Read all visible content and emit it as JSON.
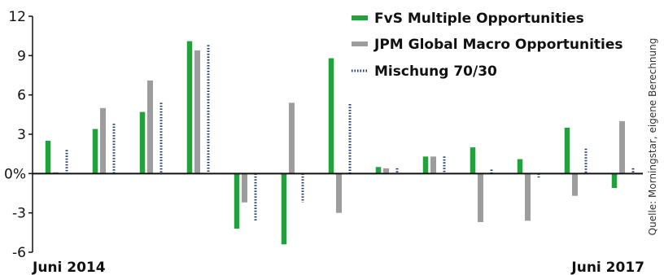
{
  "chart_data": {
    "type": "bar",
    "title": "",
    "xlabel": "",
    "ylabel": "",
    "ylim": [
      -6,
      12
    ],
    "yticks": [
      "12",
      "9",
      "6",
      "3",
      "0%",
      "-3",
      "-6"
    ],
    "x_start_label": "Juni 2014",
    "x_end_label": "Juni 2017",
    "categories": [
      "1",
      "2",
      "3",
      "4",
      "5",
      "6",
      "7",
      "8",
      "9",
      "10",
      "11",
      "12",
      "13"
    ],
    "series": [
      {
        "name": "FvS Multiple Opportunities",
        "color": "#1fa33a",
        "style": "solid",
        "values": [
          2.5,
          3.4,
          4.7,
          10.1,
          -4.2,
          -5.4,
          8.8,
          0.5,
          1.3,
          2.0,
          1.1,
          3.5,
          -1.1
        ]
      },
      {
        "name": "JPM Global Macro Opportunities",
        "color": "#9d9d9d",
        "style": "solid",
        "values": [
          0.1,
          5.0,
          7.1,
          9.4,
          -2.2,
          5.4,
          -3.0,
          0.4,
          1.3,
          -3.7,
          -3.6,
          -1.7,
          4.0
        ]
      },
      {
        "name": "Mischung 70/30",
        "color": "#1f3a78",
        "style": "dotted",
        "values": [
          1.8,
          3.8,
          5.4,
          9.8,
          -3.6,
          -2.2,
          5.3,
          0.4,
          1.3,
          0.3,
          -0.3,
          1.9,
          0.4
        ]
      }
    ],
    "legend_position": "top-right",
    "grid": false,
    "source_note": "Quelle: Morningstar, eigene Berechnung"
  }
}
